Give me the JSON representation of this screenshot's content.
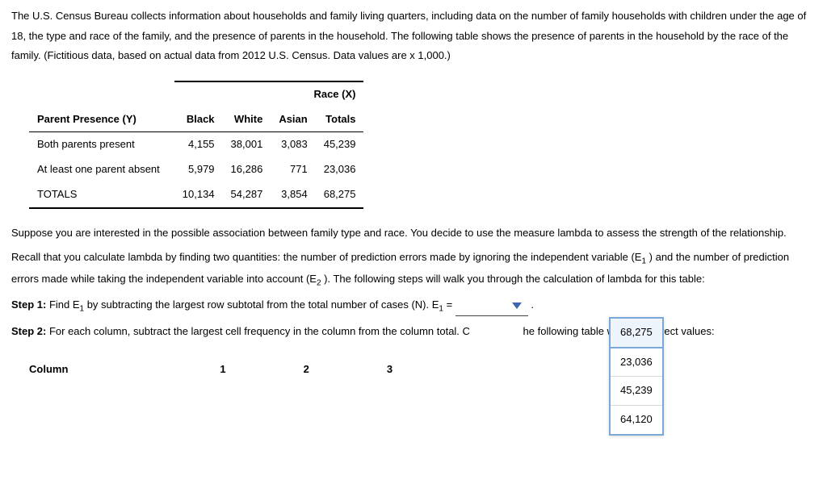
{
  "intro": {
    "p1": "The U.S. Census Bureau collects information about households and family living quarters, including data on the number of family households with children under the age of 18, the type and race of the family, and the presence of parents in the household. The following table shows the presence of parents in the household by the race of the family. (Fictitious data, based on actual data from 2012 U.S. Census. Data values are x 1,000.)"
  },
  "table": {
    "race_header": "Race (X)",
    "row_header": "Parent Presence (Y)",
    "cols": [
      "Black",
      "White",
      "Asian",
      "Totals"
    ],
    "rows": [
      {
        "label": "Both parents present",
        "cells": [
          "4,155",
          "38,001",
          "3,083",
          "45,239"
        ]
      },
      {
        "label": "At least one parent absent",
        "cells": [
          "5,979",
          "16,286",
          "771",
          "23,036"
        ]
      }
    ],
    "totals": {
      "label": "TOTALS",
      "cells": [
        "10,134",
        "54,287",
        "3,854",
        "68,275"
      ]
    }
  },
  "mid": {
    "p1": "Suppose you are interested in the possible association between family type and race. You decide to use the measure lambda to assess the strength of the relationship.",
    "p2a": "Recall that you calculate lambda by finding two quantities: the number of prediction errors made by ignoring the independent variable (E",
    "p2b": " ) and the number of prediction errors made while taking the independent variable into account (E",
    "p2c": " ). The following steps will walk you through the calculation of lambda for this table:"
  },
  "step1": {
    "bold": "Step 1:",
    "text_a": " Find E",
    "text_b": " by subtracting the largest row subtotal from the total number of cases (N). E",
    "text_c": " = ",
    "period": "."
  },
  "step2": {
    "bold": "Step 2:",
    "text_a": " For each column, subtract the largest cell frequency in the column from the column total. C",
    "text_b": "he following table with the correct values:",
    "dropdown": [
      "68,275",
      "23,036",
      "45,239",
      "64,120"
    ]
  },
  "coltable": {
    "label": "Column",
    "cols": [
      "1",
      "2",
      "3"
    ]
  },
  "sub1": "1",
  "sub2": "2"
}
